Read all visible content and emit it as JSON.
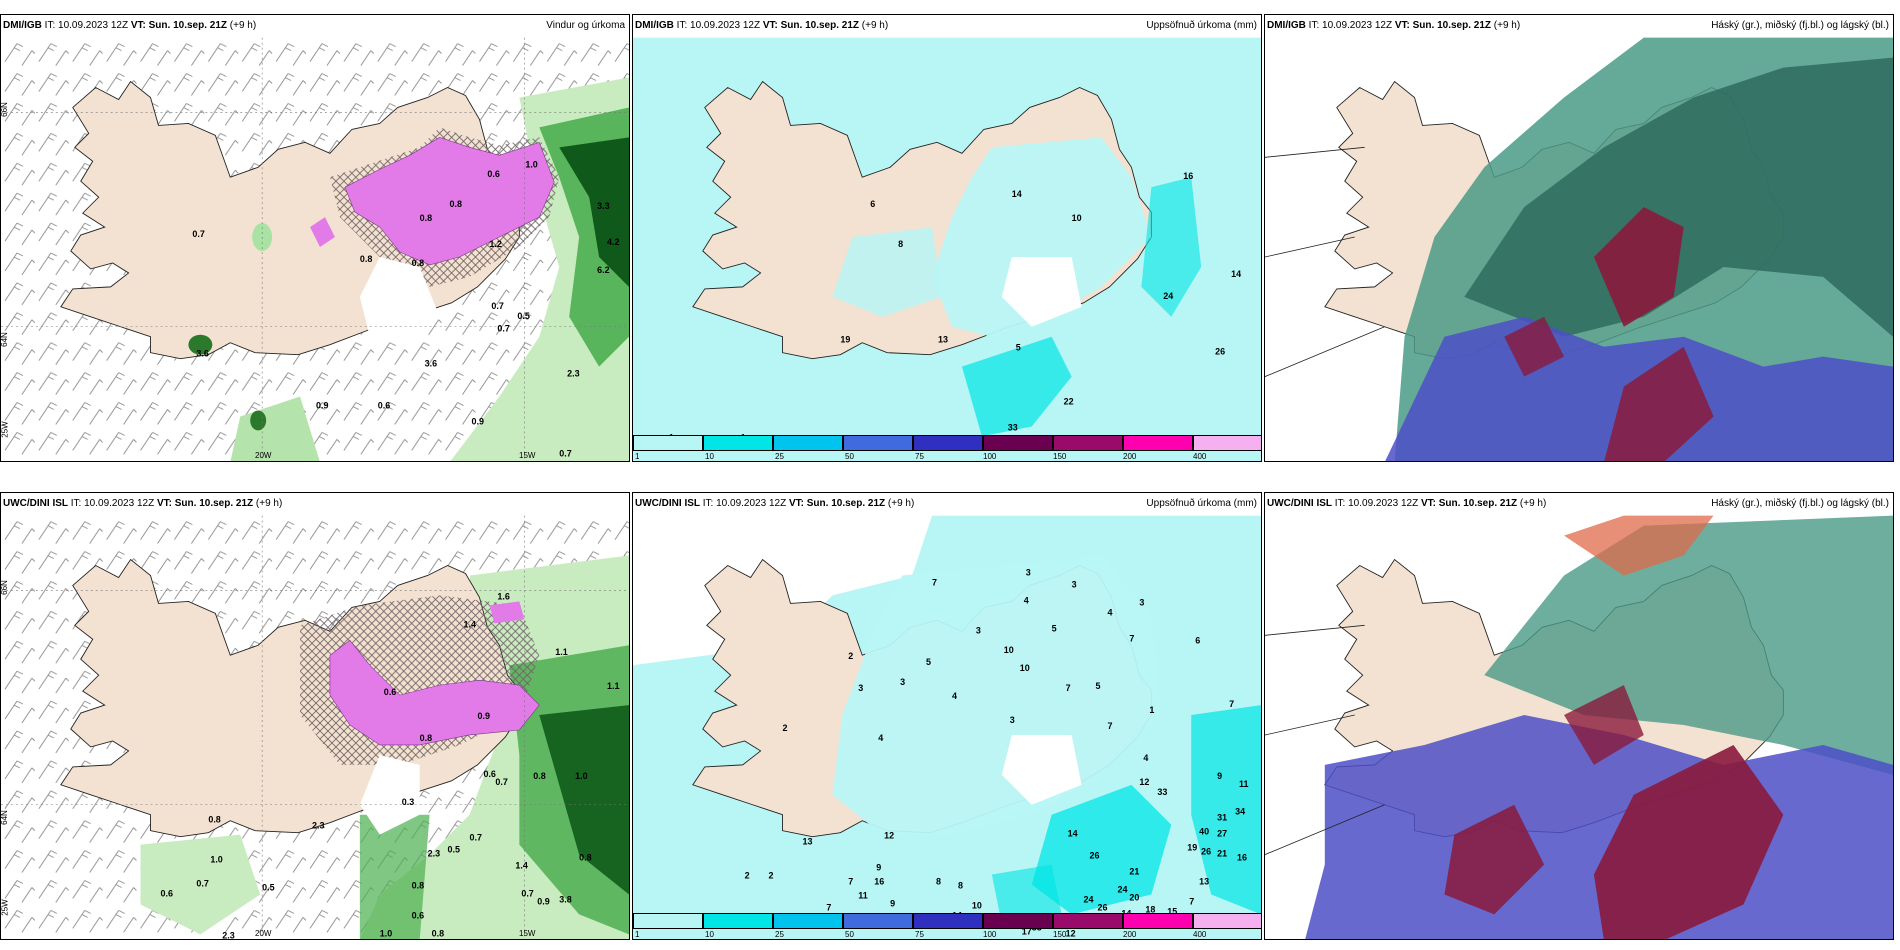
{
  "panels": {
    "dmi_wind": {
      "model": "DMI/IGB",
      "it_label": "IT: 10.09.2023 12Z",
      "vt_label": "VT: Sun. 10.sep. 21Z",
      "lead": "(+9 h)",
      "title": "Vindur og úrkoma",
      "lon_labels": [
        "20W",
        "15W"
      ],
      "lat_labels": [
        "66N",
        "64N",
        "25W"
      ],
      "values": [
        "0.7",
        "0.6",
        "0.8",
        "1.2",
        "0.8",
        "0.8",
        "0.8",
        "1.0",
        "3.3",
        "4.2",
        "6.2",
        "0.7",
        "0.5",
        "0.7",
        "3.6",
        "3.6",
        "0.9",
        "0.6",
        "0.9",
        "2.3",
        "0.7"
      ]
    },
    "dmi_precip": {
      "model": "DMI/IGB",
      "it_label": "IT: 10.09.2023 12Z",
      "vt_label": "VT: Sun. 10.sep. 21Z",
      "lead": "(+9 h)",
      "title": "Uppsöfnuð úrkoma (mm)",
      "values": [
        "16",
        "14",
        "6",
        "10",
        "8",
        "14",
        "24",
        "19",
        "13",
        "5",
        "26",
        "22",
        "33",
        "1",
        "1"
      ],
      "legend_ticks": [
        "1",
        "10",
        "25",
        "50",
        "75",
        "100",
        "150",
        "200",
        "400"
      ],
      "legend_colors": [
        "#b8f5f5",
        "#00e5e5",
        "#00c3ee",
        "#3f6bdf",
        "#3030c0",
        "#6a0050",
        "#9a0a6b",
        "#ff00b0",
        "#f5b0f0"
      ]
    },
    "dmi_cloud": {
      "model": "DMI/IGB",
      "it_label": "IT: 10.09.2023 12Z",
      "vt_label": "VT: Sun. 10.sep. 21Z",
      "lead": "(+9 h)",
      "title": "Háský (gr.), miðský (fj.bl.) og lágský (bl.)"
    },
    "uwc_wind": {
      "model": "UWC/DINI ISL",
      "it_label": "IT: 10.09.2023 12Z",
      "vt_label": "VT: Sun. 10.sep. 21Z",
      "lead": "(+9 h)",
      "title": "",
      "lon_labels": [
        "20W",
        "15W"
      ],
      "lat_labels": [
        "66N",
        "64N",
        "25W"
      ],
      "values": [
        "1.6",
        "1.4",
        "0.6",
        "0.8",
        "0.9",
        "1.1",
        "1.1",
        "0.8",
        "1.0",
        "0.7",
        "0.6",
        "0.3",
        "0.7",
        "0.5",
        "2.3",
        "0.8",
        "0.6",
        "1.0",
        "0.8",
        "0.7",
        "0.5",
        "2.3",
        "1.0",
        "0.8",
        "0.9",
        "3.8",
        "0.7",
        "0.8",
        "0.6",
        "2.3",
        "1.4"
      ]
    },
    "uwc_precip": {
      "model": "UWC/DINI ISL",
      "it_label": "IT: 10.09.2023 12Z",
      "vt_label": "VT: Sun. 10.sep. 21Z",
      "lead": "(+9 h)",
      "title": "Uppsöfnuð úrkoma (mm)",
      "values": [
        "3",
        "3",
        "7",
        "4",
        "4",
        "3",
        "5",
        "3",
        "10",
        "7",
        "10",
        "5",
        "3",
        "6",
        "2",
        "3",
        "4",
        "7",
        "5",
        "3",
        "2",
        "4",
        "7",
        "1",
        "7",
        "4",
        "12",
        "33",
        "9",
        "11",
        "34",
        "40",
        "31",
        "27",
        "16",
        "21",
        "26",
        "19",
        "13",
        "7",
        "14",
        "26",
        "21",
        "24",
        "20",
        "18",
        "15",
        "24",
        "26",
        "14",
        "17",
        "12",
        "33",
        "23",
        "14",
        "10",
        "7",
        "8",
        "9",
        "11",
        "13",
        "16",
        "2",
        "2",
        "7",
        "12",
        "9",
        "8"
      ],
      "legend_ticks": [
        "1",
        "10",
        "25",
        "50",
        "75",
        "100",
        "150",
        "200",
        "400"
      ],
      "legend_colors": [
        "#b8f5f5",
        "#00e5e5",
        "#00c3ee",
        "#3f6bdf",
        "#3030c0",
        "#6a0050",
        "#9a0a6b",
        "#ff00b0",
        "#f5b0f0"
      ]
    },
    "uwc_cloud": {
      "model": "UWC/DINI ISL",
      "it_label": "IT: 10.09.2023 12Z",
      "vt_label": "VT: Sun. 10.sep. 21Z",
      "lead": "(+9 h)",
      "title": "Háský (gr.), miðský (fj.bl.) og lágský (bl.)"
    }
  }
}
